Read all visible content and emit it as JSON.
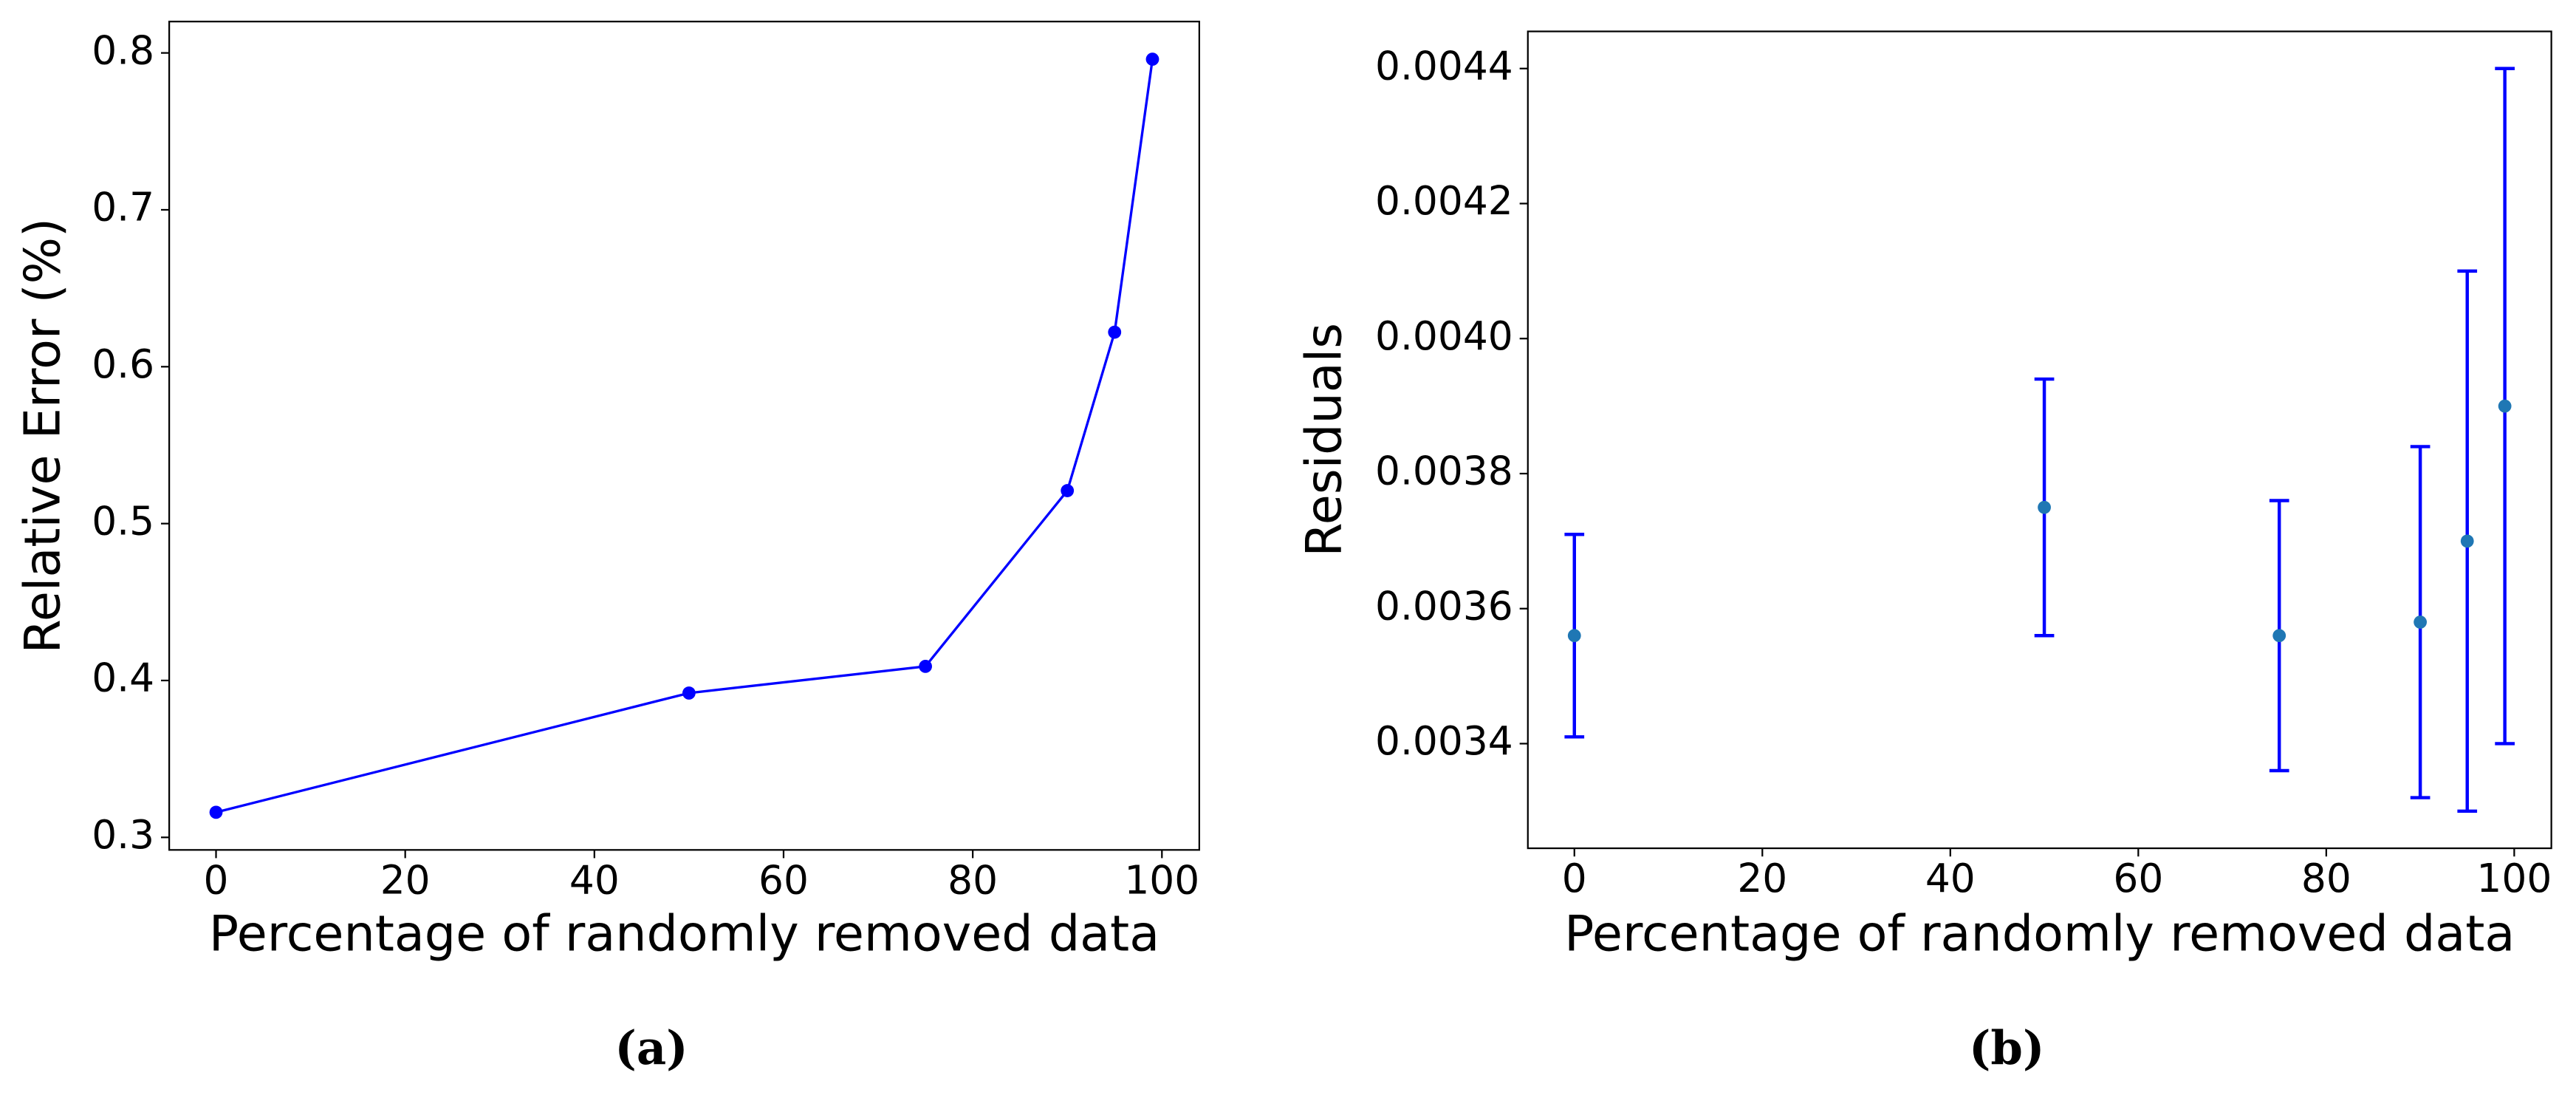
{
  "chart_data": [
    {
      "type": "line",
      "caption": "(a)",
      "xlabel": "Percentage of randomly removed data",
      "ylabel": "Relative Error (%)",
      "x": [
        0,
        50,
        75,
        90,
        95,
        99
      ],
      "values": [
        0.316,
        0.392,
        0.409,
        0.521,
        0.622,
        0.796
      ],
      "color": "#0000ff",
      "xlim": [
        -4.95,
        103.95
      ],
      "xticks": [
        0,
        20,
        40,
        60,
        80,
        100
      ],
      "ylim": [
        0.292,
        0.82
      ],
      "yticks": [
        0.3,
        0.4,
        0.5,
        0.6,
        0.7,
        0.8
      ]
    },
    {
      "type": "errorbar",
      "caption": "(b)",
      "xlabel": "Percentage of randomly removed data",
      "ylabel": "Residuals",
      "x": [
        0,
        50,
        75,
        90,
        95,
        99
      ],
      "values": [
        0.00356,
        0.00375,
        0.00356,
        0.00358,
        0.0037,
        0.0039
      ],
      "errors": [
        0.00015,
        0.00019,
        0.0002,
        0.00026,
        0.0004,
        0.0005
      ],
      "color": "#1f77b4",
      "error_color": "#0000ff",
      "xlim": [
        -4.95,
        103.95
      ],
      "xticks": [
        0,
        20,
        40,
        60,
        80,
        100
      ],
      "ylim": [
        0.003245,
        0.004455
      ],
      "yticks": [
        {
          "value": 0.0034,
          "label": "0.0034"
        },
        {
          "value": 0.0036,
          "label": "0.0036"
        },
        {
          "value": 0.0038,
          "label": "0.0038"
        },
        {
          "value": 0.004,
          "label": "0.0040"
        },
        {
          "value": 0.0042,
          "label": "0.0042"
        },
        {
          "value": 0.0044,
          "label": "0.0044"
        }
      ]
    }
  ]
}
